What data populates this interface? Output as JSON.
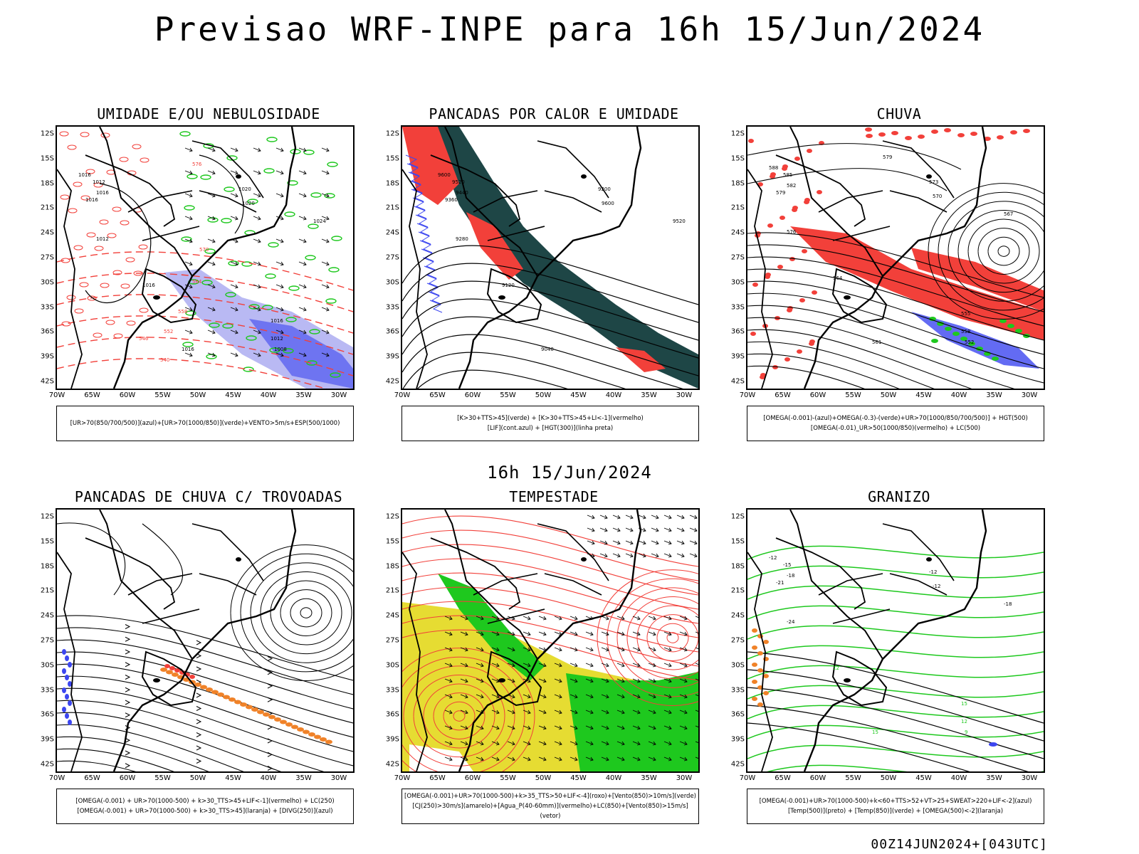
{
  "main_title": "Previsao WRF-INPE  para 16h 15/Jun/2024",
  "mid_title": "16h 15/Jun/2024",
  "footer": "00Z14JUN2024+[043UTC]",
  "axes": {
    "y_labels": [
      "12S",
      "15S",
      "18S",
      "21S",
      "24S",
      "27S",
      "30S",
      "33S",
      "36S",
      "39S",
      "42S"
    ],
    "x_labels": [
      "70W",
      "65W",
      "60W",
      "55W",
      "50W",
      "45W",
      "40W",
      "35W",
      "30W"
    ]
  },
  "panels": [
    {
      "id": "umidade",
      "title": "UMIDADE E/OU NEBULOSIDADE",
      "legend": [
        "[UR>70(850/700/500)](azul)+[UR>70(1000/850)](verde)+VENTO>5m/s+ESP(500/1000)"
      ],
      "contour_labels": [
        "1016",
        "1012",
        "1016",
        "1016",
        "1012",
        "1020",
        "1020",
        "1024",
        "1016",
        "1016",
        "1012",
        "1016",
        "1008",
        "576",
        "570",
        "564",
        "558",
        "552",
        "546",
        "540"
      ]
    },
    {
      "id": "pancadas_calor",
      "title": "PANCADAS POR CALOR E UMIDADE",
      "legend": [
        "[K>30+TTS>45](verde) + [K>30+TTS>45+LI<-1](vermelho)",
        "[LIF](cont.azul) + [HGT(300)](linha preta)"
      ],
      "contour_labels": [
        "9600",
        "9520",
        "9440",
        "9360",
        "9280",
        "9200",
        "9600",
        "9520",
        "9120",
        "9040"
      ]
    },
    {
      "id": "chuva",
      "title": "CHUVA",
      "legend": [
        "[OMEGA(-0.001)-(azul)+OMEGA(-0.3)-(verde)+UR>70(1000/850/700/500)] + HGT(500)",
        "[OMEGA(-0.01)_UR>50(1000/850)(vermelho) + LC(500)"
      ],
      "contour_labels": [
        "588",
        "585",
        "582",
        "579",
        "576",
        "573",
        "570",
        "567",
        "564",
        "561",
        "558",
        "555",
        "552",
        "579"
      ]
    },
    {
      "id": "trovoadas",
      "title": "PANCADAS DE CHUVA C/ TROVOADAS",
      "legend": [
        "[OMEGA(-0.001) + UR>70(1000-500) + k>30_TTS>45+LIF<-1](vermelho) + LC(250)",
        "[OMEGA(-0.001) + UR>70(1000-500) + k>30_TTS>45](laranja) + [DIVG(250)](azul)"
      ],
      "contour_labels": []
    },
    {
      "id": "tempestade",
      "title": "TEMPESTADE",
      "legend": [
        "[OMEGA(-0.001)+UR>70(1000-500)+k>35_TTS>50+LIF<-4](roxo)+[Vento(850)>10m/s](verde)",
        "[CJ(250)>30m/s](amarelo)+[Agua_P(40-60mm)](vermelho)+LC(850)+[Vento(850)>15m/s](vetor)"
      ],
      "contour_labels": []
    },
    {
      "id": "granizo",
      "title": "GRANIZO",
      "legend": [
        "[OMEGA(-0.001)+UR>70(1000-500)+k<60+TTS>52+VT>25+SWEAT>220+LIF<-2](azul)",
        "[Temp(500)](preto) + [Temp(850)](verde) + [OMEGA(500)<-2](laranja)"
      ],
      "contour_labels": [
        "-12",
        "-15",
        "-18",
        "-21",
        "-24",
        "-12",
        "-12",
        "-18",
        "12",
        "15",
        "12",
        "15",
        "9"
      ]
    }
  ],
  "colors": {
    "red": "#f2403a",
    "green": "#1ec81e",
    "blue": "#3c46f0",
    "lavender": "#a8a8f0",
    "darkteal": "#1e4646",
    "yellow": "#e6dc32",
    "orange": "#f08228",
    "black": "#000000"
  }
}
